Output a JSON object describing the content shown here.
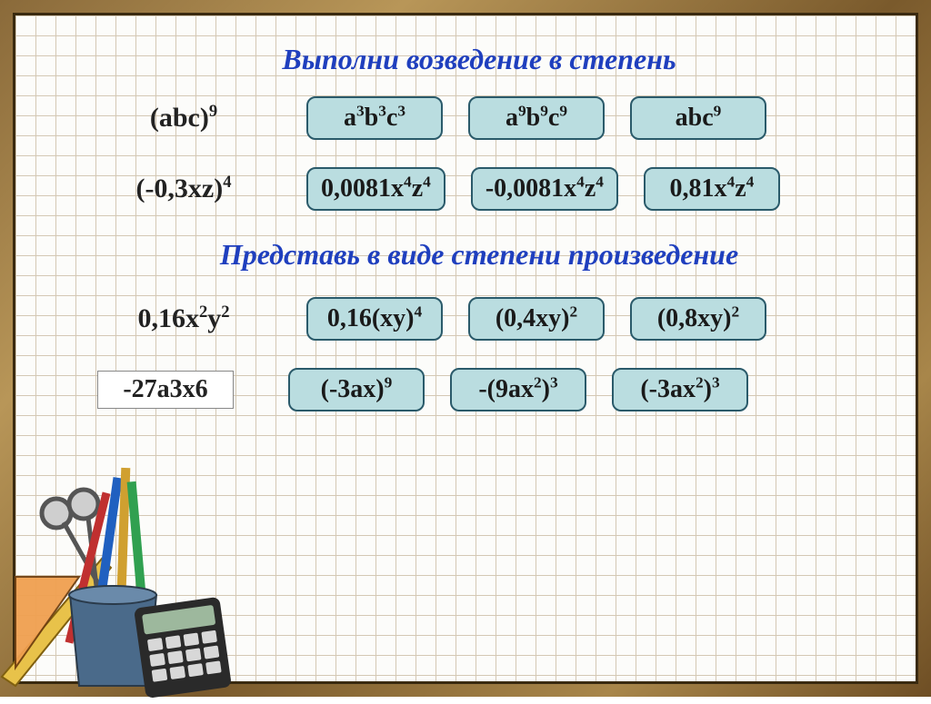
{
  "colors": {
    "title": "#1f3fbe",
    "answer_bg": "#badde0",
    "answer_border": "#2a5a6a",
    "grid_line": "#d4c8b4",
    "grid_bg": "#fcfcfa",
    "text": "#1a1a1a"
  },
  "sections": [
    {
      "title": "Выполни возведение в степень",
      "rows": [
        {
          "question_html": "(abc)<sup>9</sup>",
          "boxed": false,
          "answers": [
            "a<sup>3</sup>b<sup>3</sup>c<sup>3</sup>",
            "a<sup>9</sup>b<sup>9</sup>c<sup>9</sup>",
            "abc<sup>9</sup>"
          ]
        },
        {
          "question_html": "(-0,3xz)<sup>4</sup>",
          "boxed": false,
          "answers": [
            "0,0081x<sup>4</sup>z<sup>4</sup>",
            "-0,0081x<sup>4</sup>z<sup>4</sup>",
            "0,81x<sup>4</sup>z<sup>4</sup>"
          ]
        }
      ]
    },
    {
      "title": "Представь в виде степени произведение",
      "rows": [
        {
          "question_html": "0,16x<sup>2</sup>y<sup>2</sup>",
          "boxed": false,
          "answers": [
            "0,16(xy)<sup>4</sup>",
            "(0,4xy)<sup>2</sup>",
            "(0,8xy)<sup>2</sup>"
          ]
        },
        {
          "question_html": "-27a3x6",
          "boxed": true,
          "answers": [
            "(-3ax)<sup>9</sup>",
            "-(9ax<sup>2</sup>)<sup>3</sup>",
            "(-3ax<sup>2</sup>)<sup>3</sup>"
          ]
        }
      ]
    }
  ]
}
